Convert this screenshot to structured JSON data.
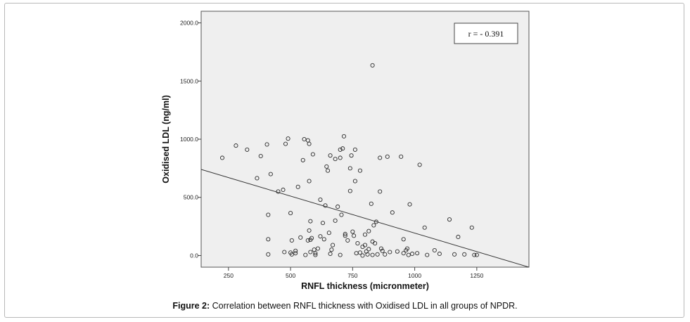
{
  "caption": {
    "label": "Figure 2:",
    "text": "Correlation between RNFL thickness with Oxidised LDL in all groups of NPDR."
  },
  "colors": {
    "plot_background": "#efefef",
    "marker_stroke": "#2b2b2b",
    "fit_line": "#333333"
  },
  "chart_data": {
    "type": "scatter",
    "title": "",
    "xlabel": "RNFL thickness (micronmeter)",
    "ylabel": "Oxidised LDL (ng/ml)",
    "xlim": [
      140,
      1460
    ],
    "ylim": [
      -100,
      2100
    ],
    "xticks": [
      250,
      500,
      750,
      1000,
      1250
    ],
    "xtick_labels": [
      "250",
      "500",
      "750",
      "1000",
      "1250"
    ],
    "yticks": [
      0,
      500,
      1000,
      1500,
      2000
    ],
    "ytick_labels": [
      "0.0",
      "500.0",
      "1000.0",
      "1500.0",
      "2000.0"
    ],
    "grid": false,
    "annotation": "r = - 0.391",
    "annotation_position": "top-right",
    "marker": "open-circle",
    "fit_line": {
      "x": [
        140,
        1460
      ],
      "y": [
        740,
        -100
      ]
    },
    "x": [
      225,
      280,
      325,
      365,
      380,
      405,
      420,
      410,
      410,
      410,
      450,
      470,
      475,
      480,
      490,
      500,
      505,
      520,
      505,
      530,
      550,
      555,
      570,
      575,
      580,
      575,
      580,
      585,
      590,
      570,
      575,
      595,
      600,
      610,
      620,
      630,
      635,
      645,
      650,
      655,
      660,
      665,
      670,
      680,
      690,
      700,
      700,
      705,
      710,
      715,
      720,
      730,
      740,
      745,
      750,
      755,
      760,
      765,
      770,
      780,
      790,
      800,
      800,
      805,
      810,
      815,
      815,
      825,
      830,
      835,
      840,
      845,
      850,
      860,
      865,
      870,
      880,
      890,
      900,
      910,
      930,
      945,
      955,
      965,
      975,
      980,
      990,
      1010,
      1020,
      1040,
      1050,
      1080,
      1100,
      1140,
      1160,
      1175,
      1200,
      1230,
      1240,
      1250,
      830,
      780,
      760,
      720,
      700,
      680,
      660,
      640,
      620,
      600,
      580,
      560,
      540,
      520,
      500,
      830,
      740,
      860,
      790,
      955,
      970
    ],
    "y": [
      840,
      945,
      910,
      665,
      855,
      955,
      700,
      350,
      140,
      10,
      550,
      565,
      30,
      960,
      1005,
      365,
      10,
      20,
      130,
      590,
      820,
      1000,
      130,
      960,
      295,
      215,
      30,
      150,
      870,
      990,
      640,
      50,
      5,
      60,
      480,
      280,
      140,
      765,
      730,
      195,
      860,
      50,
      90,
      300,
      420,
      840,
      5,
      350,
      920,
      1025,
      185,
      130,
      555,
      860,
      205,
      170,
      640,
      20,
      105,
      730,
      75,
      90,
      180,
      35,
      10,
      55,
      210,
      445,
      120,
      260,
      105,
      290,
      10,
      550,
      60,
      40,
      10,
      850,
      30,
      370,
      35,
      850,
      140,
      45,
      5,
      440,
      15,
      20,
      780,
      240,
      5,
      45,
      15,
      310,
      10,
      160,
      10,
      240,
      5,
      5,
      1635,
      25,
      910,
      170,
      910,
      830,
      15,
      430,
      165,
      20,
      135,
      5,
      155,
      40,
      25,
      5,
      750,
      840,
      0,
      20,
      60
    ]
  }
}
